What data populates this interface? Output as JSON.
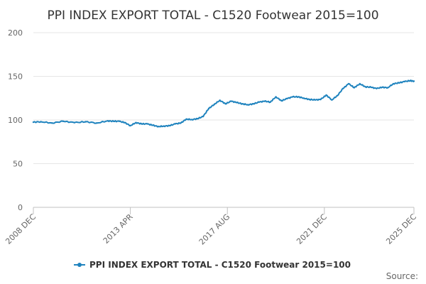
{
  "chart_data": {
    "type": "line",
    "title": "PPI INDEX EXPORT TOTAL - C1520 Footwear 2015=100",
    "xlabel": "",
    "ylabel": "",
    "ylim": [
      0,
      200
    ],
    "yticks": [
      0,
      50,
      100,
      150,
      200
    ],
    "x_range": [
      "2008 DEC",
      "2025 DEC"
    ],
    "x_ticks": [
      "2008 DEC",
      "2013 APR",
      "2017 AUG",
      "2021 DEC",
      "2025 DEC"
    ],
    "grid": true,
    "legend_position": "bottom",
    "source_label": "Source:",
    "series": [
      {
        "name": "PPI INDEX EXPORT TOTAL - C1520 Footwear 2015=100",
        "color": "#1F83BE",
        "x": [
          2008.917,
          2009.25,
          2009.75,
          2010.25,
          2010.75,
          2011.25,
          2011.75,
          2012.25,
          2012.5,
          2012.75,
          2013.0,
          2013.25,
          2013.5,
          2013.75,
          2014.0,
          2014.25,
          2014.5,
          2014.75,
          2015.0,
          2015.25,
          2015.5,
          2015.75,
          2016.0,
          2016.25,
          2016.5,
          2016.75,
          2017.0,
          2017.25,
          2017.5,
          2017.75,
          2018.0,
          2018.25,
          2018.5,
          2018.75,
          2019.0,
          2019.25,
          2019.5,
          2019.75,
          2020.0,
          2020.25,
          2020.5,
          2020.75,
          2021.0,
          2021.25,
          2021.5,
          2021.75,
          2022.0,
          2022.25,
          2022.5,
          2022.75,
          2023.0,
          2023.25,
          2023.5,
          2023.75,
          2024.0,
          2024.25,
          2024.5,
          2024.75,
          2025.0,
          2025.25,
          2025.5,
          2025.75,
          2025.917
        ],
        "values": [
          97.5,
          98,
          96.5,
          98.5,
          97,
          98,
          96.5,
          99,
          98.5,
          98.5,
          97,
          93.5,
          97,
          95.5,
          95.5,
          94,
          92.5,
          93,
          93.5,
          95.5,
          96.5,
          101,
          100.5,
          101.5,
          104,
          113,
          118,
          122.5,
          118.5,
          121.5,
          120,
          118.5,
          117.5,
          118.5,
          120.5,
          121.5,
          120.5,
          126.5,
          122,
          124.5,
          126.5,
          126.5,
          125,
          123.5,
          123,
          123.5,
          128.5,
          123,
          128,
          136,
          141.5,
          137,
          141.5,
          138,
          137.5,
          136,
          137.5,
          137,
          141.5,
          142.5,
          144,
          145,
          144.5
        ]
      }
    ]
  }
}
